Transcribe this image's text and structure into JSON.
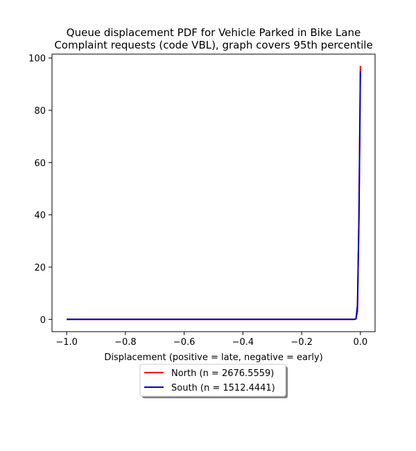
{
  "chart_data": {
    "type": "line",
    "title": "Queue displacement PDF for Vehicle Parked in Bike Lane",
    "subtitle": "Complaint  requests (code VBL), graph covers 95th percentile",
    "xlabel": "Displacement (positive = late, negative = early)",
    "ylabel": "",
    "xlim": [
      -1.05,
      0.05
    ],
    "ylim": [
      -4.7,
      101.5
    ],
    "x_ticks": [
      -1.0,
      -0.8,
      -0.6,
      -0.4,
      -0.2,
      0.0
    ],
    "x_tick_labels": [
      "−1.0",
      "−0.8",
      "−0.6",
      "−0.4",
      "−0.2",
      "0.0"
    ],
    "y_ticks": [
      0,
      20,
      40,
      60,
      80,
      100
    ],
    "y_tick_labels": [
      "0",
      "20",
      "40",
      "60",
      "80",
      "100"
    ],
    "grid": false,
    "legend_position": "below",
    "legend_shadow": true,
    "series": [
      {
        "name": "North (n = 2676.5559)",
        "color": "#ff0000",
        "x": [
          -1.0,
          -0.8,
          -0.6,
          -0.4,
          -0.2,
          -0.1,
          -0.02,
          -0.015,
          -0.01,
          -0.005,
          0.0
        ],
        "y": [
          0,
          0,
          0,
          0,
          0,
          0,
          0,
          0.2,
          3,
          40,
          97
        ]
      },
      {
        "name": "South (n = 1512.4441)",
        "color": "#0000cc",
        "x": [
          -1.0,
          -0.8,
          -0.6,
          -0.4,
          -0.2,
          -0.1,
          -0.02,
          -0.015,
          -0.01,
          -0.005,
          0.0
        ],
        "y": [
          0,
          0,
          0,
          0,
          0,
          0,
          0,
          0.2,
          5.5,
          38,
          95
        ]
      }
    ]
  }
}
